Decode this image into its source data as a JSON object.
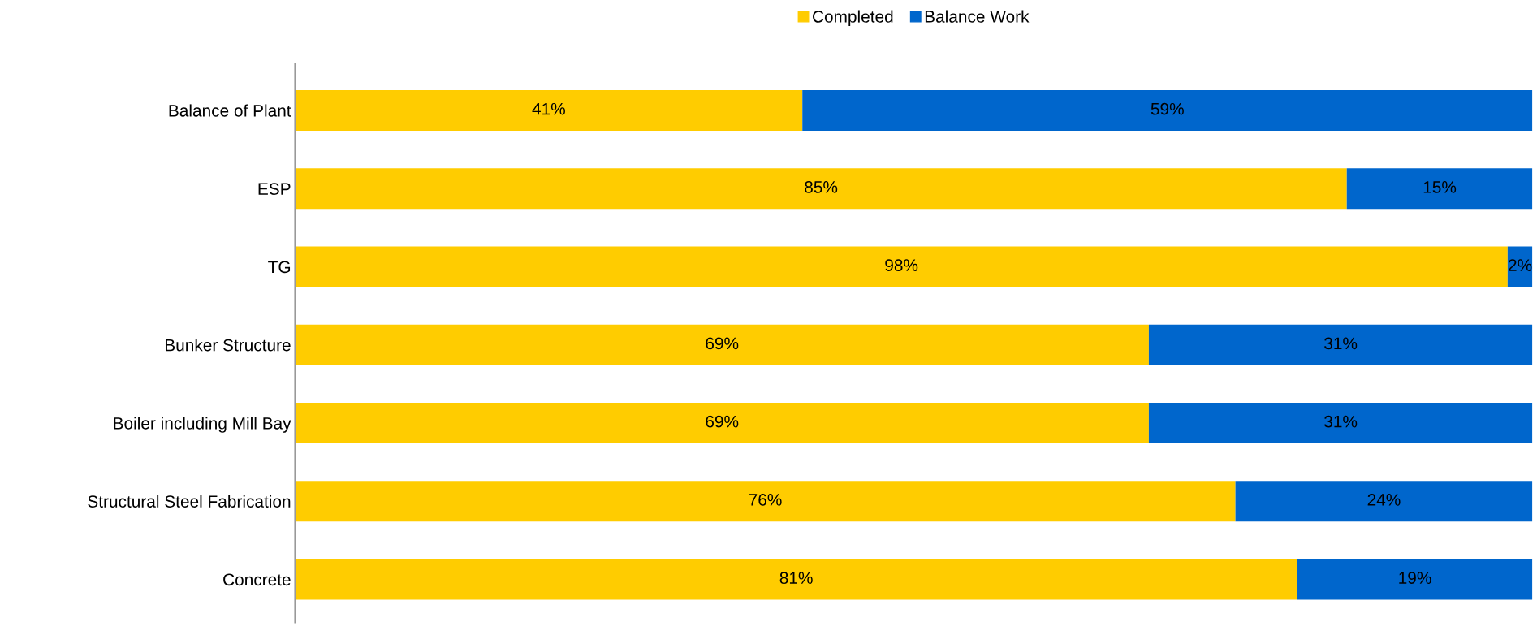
{
  "chart_data": {
    "type": "bar",
    "orientation": "horizontal",
    "stacked": true,
    "legend": "top",
    "grid": false,
    "tick_labels": "y",
    "categories": [
      "Balance of Plant",
      "ESP",
      "TG",
      "Bunker Structure",
      "Boiler including Mill Bay",
      "Structural Steel Fabrication",
      "Concrete"
    ],
    "series": [
      {
        "name": "Completed",
        "color": "#ffcc00",
        "values": [
          41,
          85,
          98,
          69,
          69,
          76,
          81
        ],
        "value_labels": [
          "41%",
          "85%",
          "98%",
          "69%",
          "69%",
          "76%",
          "81%"
        ]
      },
      {
        "name": "Balance Work",
        "color": "#0066cc",
        "values": [
          59,
          15,
          2,
          31,
          31,
          24,
          19
        ],
        "value_labels": [
          "59%",
          "15%",
          "2%",
          "31%",
          "31%",
          "24%",
          "19%"
        ]
      }
    ]
  }
}
